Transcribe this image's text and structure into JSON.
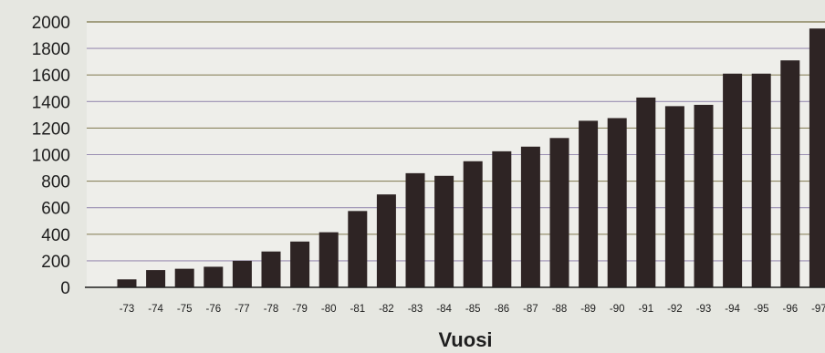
{
  "chart_data": {
    "type": "bar",
    "title": "",
    "xlabel": "Vuosi",
    "ylabel": "",
    "ylim": [
      0,
      2000
    ],
    "yticks": [
      "0",
      "200",
      "400",
      "600",
      "800",
      "1000",
      "1200",
      "1400",
      "1600",
      "1800",
      "2000"
    ],
    "grid": true,
    "categories": [
      "-73",
      "-74",
      "-75",
      "-76",
      "-77",
      "-78",
      "-79",
      "-80",
      "-81",
      "-82",
      "-83",
      "-84",
      "-85",
      "-86",
      "-87",
      "-88",
      "-89",
      "-90",
      "-91",
      "-92",
      "-93",
      "-94",
      "-95",
      "-96",
      "-97"
    ],
    "values": [
      60,
      130,
      140,
      155,
      200,
      270,
      345,
      415,
      575,
      700,
      860,
      840,
      950,
      1025,
      1060,
      1125,
      1255,
      1275,
      1430,
      1365,
      1375,
      1610,
      1610,
      1710,
      1950
    ],
    "colors": {
      "bar": "#2e2424",
      "background": "#e6e7e1",
      "plot_area": "#eeeeea",
      "grid": [
        "#8b8560",
        "#9a8fb2"
      ]
    }
  }
}
